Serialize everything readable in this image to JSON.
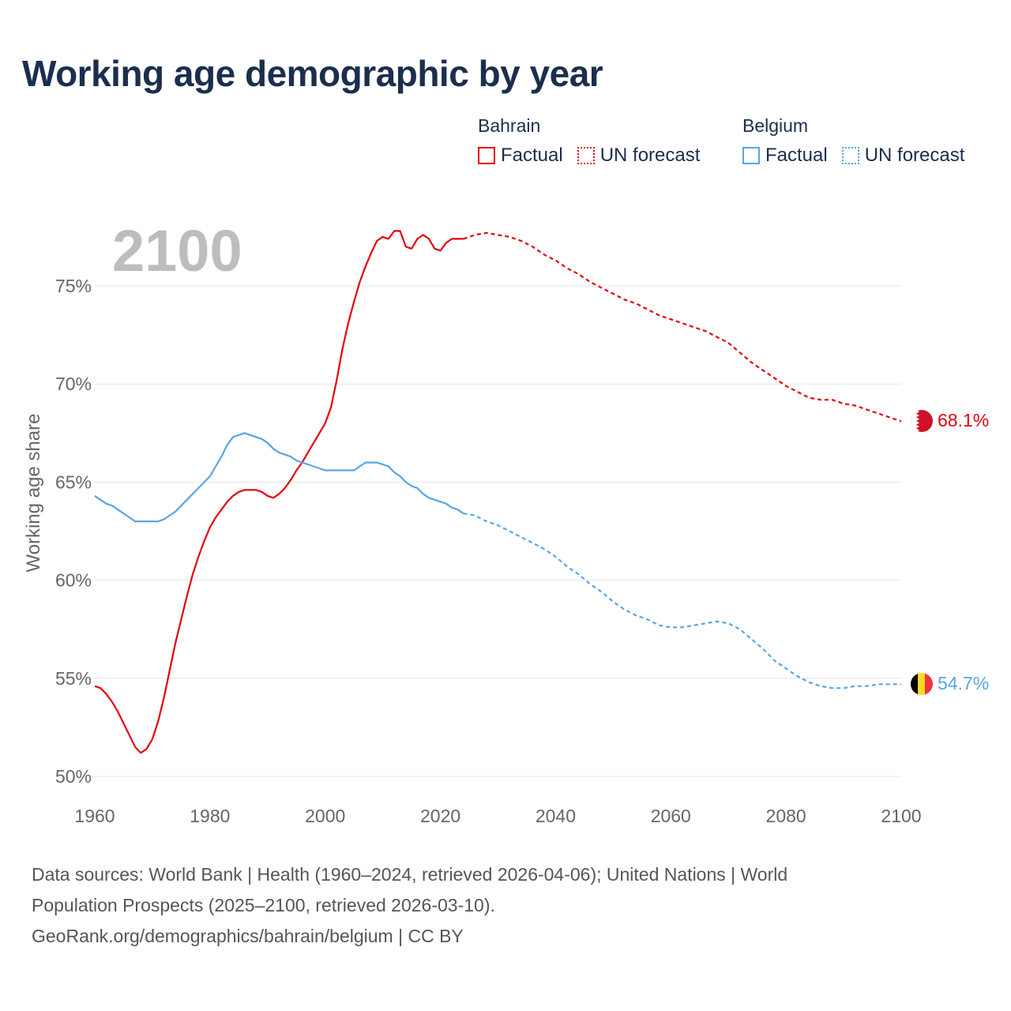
{
  "title": "Working age demographic by year",
  "legend": {
    "groups": [
      {
        "country": "Bahrain",
        "color": "#e3000f",
        "factual_label": "Factual",
        "forecast_label": "UN forecast"
      },
      {
        "country": "Belgium",
        "color": "#5aa5e6",
        "factual_label": "Factual",
        "forecast_label": "UN forecast"
      }
    ]
  },
  "year_watermark": "2100",
  "end_labels": {
    "bahrain": "68.1%",
    "belgium": "54.7%"
  },
  "source": {
    "line1": "Data sources: World Bank | Health (1960–2024, retrieved 2026-04-06); United Nations | World",
    "line2": "Population Prospects (2025–2100, retrieved 2026-03-10).",
    "line3": "GeoRank.org/demographics/bahrain/belgium | CC BY"
  },
  "chart_data": {
    "type": "line",
    "title": "Working age demographic by year",
    "xlabel": "",
    "ylabel": "Working age share",
    "xlim": [
      1960,
      2100
    ],
    "ylim": [
      50,
      78
    ],
    "x_ticks": [
      1960,
      1980,
      2000,
      2020,
      2040,
      2060,
      2080,
      2100
    ],
    "x_tick_labels": [
      "1960",
      "1980",
      "2000",
      "2020",
      "2040",
      "2060",
      "2080",
      "2100"
    ],
    "y_ticks": [
      50,
      55,
      60,
      65,
      70,
      75
    ],
    "y_tick_labels": [
      "50%",
      "55%",
      "60%",
      "65%",
      "70%",
      "75%"
    ],
    "grid": true,
    "factual_end_year": 2024,
    "series": [
      {
        "name": "Bahrain",
        "color": "#e3000f",
        "points": [
          [
            1960,
            54.6
          ],
          [
            1961,
            54.5
          ],
          [
            1962,
            54.2
          ],
          [
            1963,
            53.8
          ],
          [
            1964,
            53.3
          ],
          [
            1965,
            52.7
          ],
          [
            1966,
            52.1
          ],
          [
            1967,
            51.5
          ],
          [
            1968,
            51.2
          ],
          [
            1969,
            51.4
          ],
          [
            1970,
            51.9
          ],
          [
            1971,
            52.8
          ],
          [
            1972,
            54.0
          ],
          [
            1973,
            55.4
          ],
          [
            1974,
            56.8
          ],
          [
            1975,
            58.0
          ],
          [
            1976,
            59.2
          ],
          [
            1977,
            60.3
          ],
          [
            1978,
            61.2
          ],
          [
            1979,
            62.0
          ],
          [
            1980,
            62.7
          ],
          [
            1981,
            63.2
          ],
          [
            1982,
            63.6
          ],
          [
            1983,
            64.0
          ],
          [
            1984,
            64.3
          ],
          [
            1985,
            64.5
          ],
          [
            1986,
            64.6
          ],
          [
            1987,
            64.6
          ],
          [
            1988,
            64.6
          ],
          [
            1989,
            64.5
          ],
          [
            1990,
            64.3
          ],
          [
            1991,
            64.2
          ],
          [
            1992,
            64.4
          ],
          [
            1993,
            64.7
          ],
          [
            1994,
            65.1
          ],
          [
            1995,
            65.6
          ],
          [
            1996,
            66.0
          ],
          [
            1997,
            66.5
          ],
          [
            1998,
            67.0
          ],
          [
            1999,
            67.5
          ],
          [
            2000,
            68.0
          ],
          [
            2001,
            68.8
          ],
          [
            2002,
            70.2
          ],
          [
            2003,
            71.8
          ],
          [
            2004,
            73.1
          ],
          [
            2005,
            74.2
          ],
          [
            2006,
            75.2
          ],
          [
            2007,
            76.0
          ],
          [
            2008,
            76.7
          ],
          [
            2009,
            77.3
          ],
          [
            2010,
            77.5
          ],
          [
            2011,
            77.4
          ],
          [
            2012,
            77.8
          ],
          [
            2013,
            77.8
          ],
          [
            2014,
            77.0
          ],
          [
            2015,
            76.9
          ],
          [
            2016,
            77.4
          ],
          [
            2017,
            77.6
          ],
          [
            2018,
            77.4
          ],
          [
            2019,
            76.9
          ],
          [
            2020,
            76.8
          ],
          [
            2021,
            77.2
          ],
          [
            2022,
            77.4
          ],
          [
            2023,
            77.4
          ],
          [
            2024,
            77.4
          ],
          [
            2026,
            77.6
          ],
          [
            2028,
            77.7
          ],
          [
            2030,
            77.6
          ],
          [
            2032,
            77.5
          ],
          [
            2034,
            77.3
          ],
          [
            2036,
            77.0
          ],
          [
            2038,
            76.6
          ],
          [
            2040,
            76.3
          ],
          [
            2042,
            75.9
          ],
          [
            2044,
            75.6
          ],
          [
            2046,
            75.2
          ],
          [
            2048,
            74.9
          ],
          [
            2050,
            74.6
          ],
          [
            2052,
            74.3
          ],
          [
            2054,
            74.1
          ],
          [
            2056,
            73.8
          ],
          [
            2058,
            73.5
          ],
          [
            2060,
            73.3
          ],
          [
            2062,
            73.1
          ],
          [
            2064,
            72.9
          ],
          [
            2066,
            72.7
          ],
          [
            2068,
            72.4
          ],
          [
            2070,
            72.1
          ],
          [
            2072,
            71.6
          ],
          [
            2074,
            71.1
          ],
          [
            2076,
            70.7
          ],
          [
            2078,
            70.3
          ],
          [
            2080,
            69.9
          ],
          [
            2082,
            69.6
          ],
          [
            2084,
            69.3
          ],
          [
            2086,
            69.2
          ],
          [
            2088,
            69.2
          ],
          [
            2090,
            69.0
          ],
          [
            2092,
            68.9
          ],
          [
            2094,
            68.7
          ],
          [
            2096,
            68.5
          ],
          [
            2098,
            68.3
          ],
          [
            2100,
            68.1
          ]
        ]
      },
      {
        "name": "Belgium",
        "color": "#5aa5e6",
        "points": [
          [
            1960,
            64.3
          ],
          [
            1961,
            64.1
          ],
          [
            1962,
            63.9
          ],
          [
            1963,
            63.8
          ],
          [
            1964,
            63.6
          ],
          [
            1965,
            63.4
          ],
          [
            1966,
            63.2
          ],
          [
            1967,
            63.0
          ],
          [
            1968,
            63.0
          ],
          [
            1969,
            63.0
          ],
          [
            1970,
            63.0
          ],
          [
            1971,
            63.0
          ],
          [
            1972,
            63.1
          ],
          [
            1973,
            63.3
          ],
          [
            1974,
            63.5
          ],
          [
            1975,
            63.8
          ],
          [
            1976,
            64.1
          ],
          [
            1977,
            64.4
          ],
          [
            1978,
            64.7
          ],
          [
            1979,
            65.0
          ],
          [
            1980,
            65.3
          ],
          [
            1981,
            65.8
          ],
          [
            1982,
            66.3
          ],
          [
            1983,
            66.9
          ],
          [
            1984,
            67.3
          ],
          [
            1985,
            67.4
          ],
          [
            1986,
            67.5
          ],
          [
            1987,
            67.4
          ],
          [
            1988,
            67.3
          ],
          [
            1989,
            67.2
          ],
          [
            1990,
            67.0
          ],
          [
            1991,
            66.7
          ],
          [
            1992,
            66.5
          ],
          [
            1993,
            66.4
          ],
          [
            1994,
            66.3
          ],
          [
            1995,
            66.1
          ],
          [
            1996,
            66.0
          ],
          [
            1997,
            65.9
          ],
          [
            1998,
            65.8
          ],
          [
            1999,
            65.7
          ],
          [
            2000,
            65.6
          ],
          [
            2001,
            65.6
          ],
          [
            2002,
            65.6
          ],
          [
            2003,
            65.6
          ],
          [
            2004,
            65.6
          ],
          [
            2005,
            65.6
          ],
          [
            2006,
            65.8
          ],
          [
            2007,
            66.0
          ],
          [
            2008,
            66.0
          ],
          [
            2009,
            66.0
          ],
          [
            2010,
            65.9
          ],
          [
            2011,
            65.8
          ],
          [
            2012,
            65.5
          ],
          [
            2013,
            65.3
          ],
          [
            2014,
            65.0
          ],
          [
            2015,
            64.8
          ],
          [
            2016,
            64.7
          ],
          [
            2017,
            64.4
          ],
          [
            2018,
            64.2
          ],
          [
            2019,
            64.1
          ],
          [
            2020,
            64.0
          ],
          [
            2021,
            63.9
          ],
          [
            2022,
            63.7
          ],
          [
            2023,
            63.6
          ],
          [
            2024,
            63.4
          ],
          [
            2026,
            63.3
          ],
          [
            2028,
            63.0
          ],
          [
            2030,
            62.8
          ],
          [
            2032,
            62.5
          ],
          [
            2034,
            62.2
          ],
          [
            2036,
            61.9
          ],
          [
            2038,
            61.6
          ],
          [
            2040,
            61.2
          ],
          [
            2042,
            60.7
          ],
          [
            2044,
            60.3
          ],
          [
            2046,
            59.8
          ],
          [
            2048,
            59.4
          ],
          [
            2050,
            58.9
          ],
          [
            2052,
            58.5
          ],
          [
            2054,
            58.2
          ],
          [
            2056,
            58.0
          ],
          [
            2058,
            57.7
          ],
          [
            2060,
            57.6
          ],
          [
            2062,
            57.6
          ],
          [
            2064,
            57.7
          ],
          [
            2066,
            57.8
          ],
          [
            2068,
            57.9
          ],
          [
            2070,
            57.8
          ],
          [
            2072,
            57.5
          ],
          [
            2074,
            57.0
          ],
          [
            2076,
            56.5
          ],
          [
            2078,
            55.9
          ],
          [
            2080,
            55.5
          ],
          [
            2082,
            55.1
          ],
          [
            2084,
            54.8
          ],
          [
            2086,
            54.6
          ],
          [
            2088,
            54.5
          ],
          [
            2090,
            54.5
          ],
          [
            2092,
            54.6
          ],
          [
            2094,
            54.6
          ],
          [
            2096,
            54.7
          ],
          [
            2098,
            54.7
          ],
          [
            2100,
            54.7
          ]
        ]
      }
    ]
  }
}
